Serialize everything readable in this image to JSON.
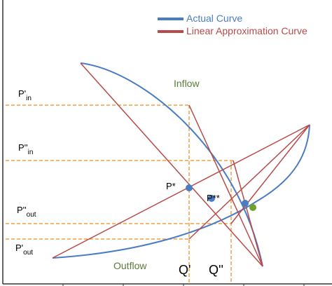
{
  "legend": {
    "items": [
      {
        "label": "Actual Curve"
      },
      {
        "label": "Linear Approximation  Curve"
      }
    ]
  },
  "curves": {
    "inflow": "Inflow",
    "outflow": "Outflow"
  },
  "y_labels": [
    {
      "main": "P'",
      "sub": "in"
    },
    {
      "main": "P''",
      "sub": "in"
    },
    {
      "main": "P''",
      "sub": "out"
    },
    {
      "main": "P'",
      "sub": "out"
    }
  ],
  "points": [
    "P*",
    "P**"
  ],
  "x_labels": [
    "Q'",
    "Q''"
  ]
}
